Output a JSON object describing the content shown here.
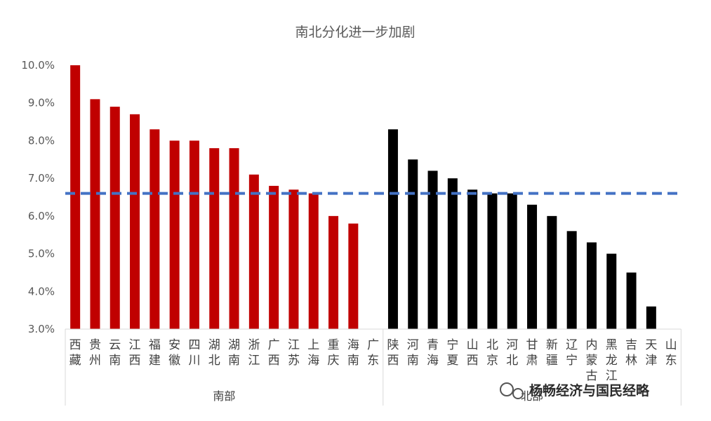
{
  "chart_data": {
    "type": "bar",
    "title": "南北分化进一步加剧",
    "ylim": [
      3.0,
      10.0
    ],
    "y_ticks": [
      "3.0%",
      "4.0%",
      "5.0%",
      "6.0%",
      "7.0%",
      "8.0%",
      "9.0%",
      "10.0%"
    ],
    "y_tick_values": [
      3,
      4,
      5,
      6,
      7,
      8,
      9,
      10
    ],
    "reference_line": {
      "value": 6.6,
      "style": "dashed",
      "color": "#4472C4"
    },
    "groups": [
      {
        "name": "南部",
        "color": "#C00000",
        "categories": [
          "西藏",
          "贵州",
          "云南",
          "江西",
          "福建",
          "安徽",
          "四川",
          "湖北",
          "湖南",
          "浙江",
          "广西",
          "江苏",
          "上海",
          "重庆",
          "海南",
          "广东"
        ],
        "values": [
          10.0,
          9.1,
          8.9,
          8.7,
          8.3,
          8.0,
          8.0,
          7.8,
          7.8,
          7.1,
          6.8,
          6.7,
          6.6,
          6.0,
          5.8,
          null
        ]
      },
      {
        "name": "北部",
        "color": "#000000",
        "categories": [
          "陕西",
          "河南",
          "青海",
          "宁夏",
          "山西",
          "北京",
          "河北",
          "甘肃",
          "新疆",
          "辽宁",
          "内蒙古",
          "黑龙江",
          "吉林",
          "天津",
          "山东"
        ],
        "values": [
          8.3,
          7.5,
          7.2,
          7.0,
          6.7,
          6.6,
          6.6,
          6.3,
          6.0,
          5.6,
          5.3,
          5.0,
          4.5,
          3.6,
          null
        ]
      }
    ],
    "grid": false,
    "legend": "none"
  },
  "watermark": "杨畅经济与国民经略"
}
